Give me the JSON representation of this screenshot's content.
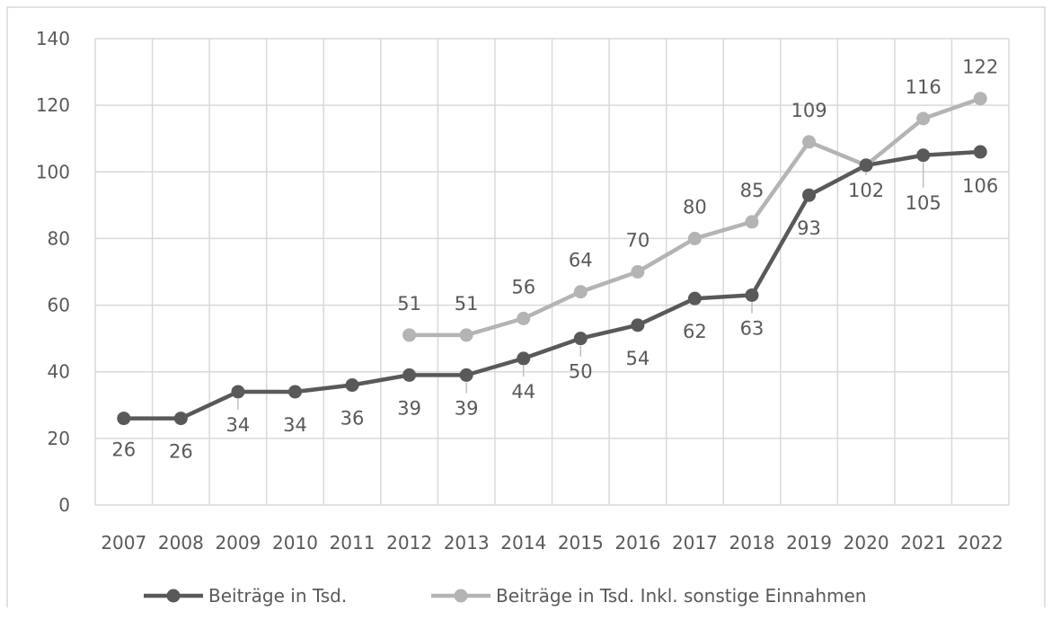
{
  "chart_data": {
    "type": "line",
    "title": "",
    "xlabel": "",
    "ylabel": "",
    "ylim": [
      0,
      140
    ],
    "yticks": [
      0,
      20,
      40,
      60,
      80,
      100,
      120,
      140
    ],
    "categories": [
      "2007",
      "2008",
      "2009",
      "2010",
      "2011",
      "2012",
      "2013",
      "2014",
      "2015",
      "2016",
      "2017",
      "2018",
      "2019",
      "2020",
      "2021",
      "2022"
    ],
    "grid": true,
    "legend_position": "bottom",
    "series": [
      {
        "name": "Beiträge in Tsd.",
        "color": "#595959",
        "values": [
          26,
          26,
          34,
          34,
          36,
          39,
          39,
          44,
          50,
          54,
          62,
          63,
          93,
          102,
          105,
          106
        ],
        "labels": [
          "26",
          "26",
          "34",
          "34",
          "36",
          "39",
          "39",
          "44",
          "50",
          "54",
          "62",
          "63",
          "93",
          "102",
          "105",
          "106"
        ]
      },
      {
        "name": "Beiträge in Tsd. Inkl. sonstige Einnahmen",
        "color": "#b4b4b4",
        "values": [
          null,
          null,
          null,
          null,
          null,
          51,
          51,
          56,
          64,
          70,
          80,
          85,
          109,
          102,
          116,
          122
        ],
        "labels": [
          "",
          "",
          "",
          "",
          "",
          "51",
          "51",
          "56",
          "64",
          "70",
          "80",
          "85",
          "109",
          "",
          "116",
          "122"
        ]
      }
    ]
  }
}
